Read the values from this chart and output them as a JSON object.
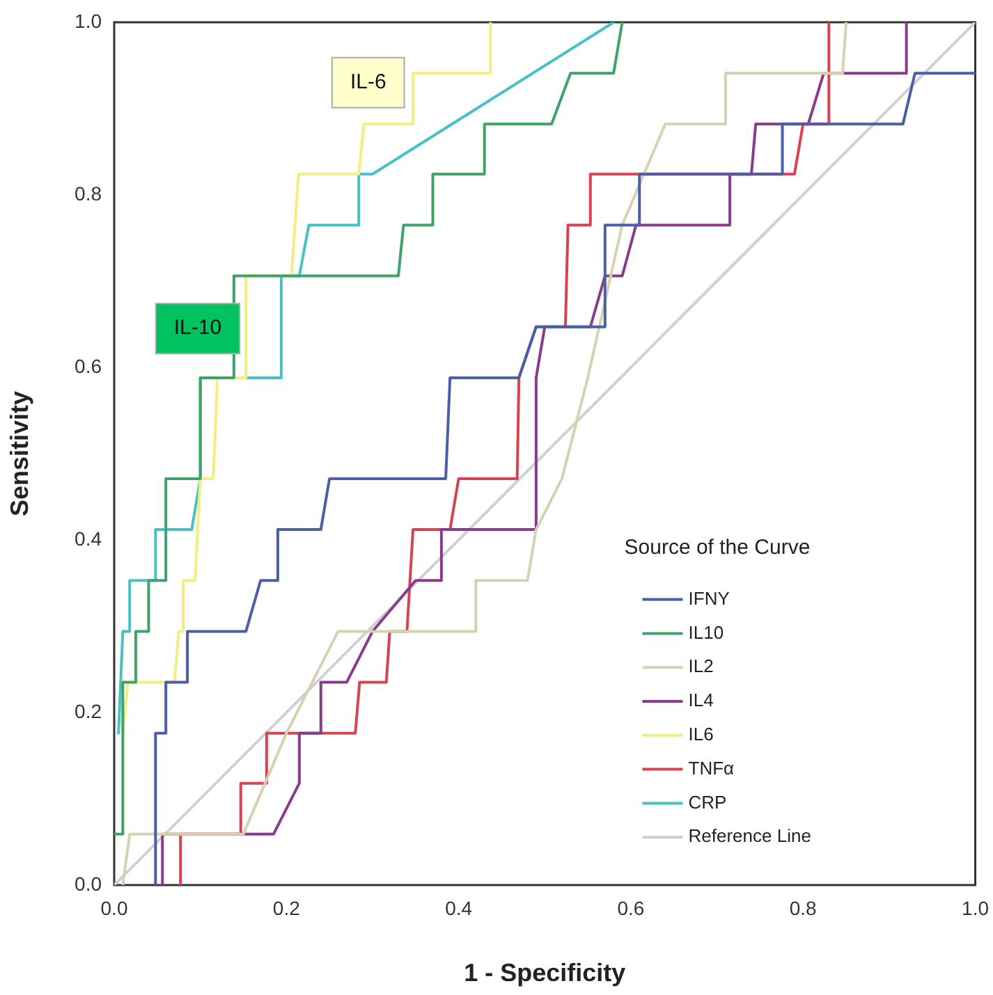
{
  "chart_data": {
    "type": "line",
    "xlabel": "1 - Specificity",
    "ylabel": "Sensitivity",
    "legend_title": "Source of the Curve",
    "legend": "bottom right",
    "grid": false,
    "marker": "none",
    "line_style": "solid",
    "xlim": [
      0,
      1
    ],
    "ylim": [
      0,
      1
    ],
    "xticks": [
      {
        "value": 0,
        "label": "0.0"
      },
      {
        "value": 0.2,
        "label": "0.2"
      },
      {
        "value": 0.4,
        "label": "0.4"
      },
      {
        "value": 0.6,
        "label": "0.6"
      },
      {
        "value": 0.8,
        "label": "0.8"
      },
      {
        "value": 1,
        "label": "1.0"
      }
    ],
    "yticks": [
      {
        "value": 0,
        "label": "0.0"
      },
      {
        "value": 0.2,
        "label": "0.2"
      },
      {
        "value": 0.4,
        "label": "0.4"
      },
      {
        "value": 0.6,
        "label": "0.6"
      },
      {
        "value": 0.8,
        "label": "0.8"
      },
      {
        "value": 1,
        "label": "1.0"
      }
    ],
    "annotations": [
      "IL-6",
      "IL-10"
    ],
    "series": [
      {
        "name": "IFNY",
        "color": "#4b5fa6",
        "x": [
          0.048,
          0.048,
          0.06,
          0.06,
          0.085,
          0.085,
          0.153,
          0.17,
          0.19,
          0.19,
          0.24,
          0.25,
          0.385,
          0.39,
          0.47,
          0.49,
          0.57,
          0.57,
          0.61,
          0.61,
          0.776,
          0.776,
          0.916,
          0.93,
          1
        ],
        "values": [
          0,
          0.176,
          0.176,
          0.235,
          0.235,
          0.294,
          0.294,
          0.353,
          0.353,
          0.412,
          0.412,
          0.471,
          0.471,
          0.588,
          0.588,
          0.647,
          0.647,
          0.765,
          0.765,
          0.824,
          0.824,
          0.882,
          0.882,
          0.941,
          0.941
        ]
      },
      {
        "name": "IL10",
        "color": "#3da36a",
        "x": [
          0,
          0.01,
          0.01,
          0.025,
          0.025,
          0.04,
          0.04,
          0.06,
          0.06,
          0.1,
          0.1,
          0.139,
          0.139,
          0.33,
          0.336,
          0.37,
          0.37,
          0.43,
          0.43,
          0.508,
          0.53,
          0.58,
          0.59
        ],
        "values": [
          0.059,
          0.059,
          0.235,
          0.235,
          0.294,
          0.294,
          0.353,
          0.353,
          0.471,
          0.471,
          0.588,
          0.588,
          0.706,
          0.706,
          0.765,
          0.765,
          0.824,
          0.824,
          0.882,
          0.882,
          0.941,
          0.941,
          1
        ]
      },
      {
        "name": "IL2",
        "color": "#d6d2b0",
        "x": [
          0.01,
          0.018,
          0.15,
          0.2,
          0.26,
          0.42,
          0.42,
          0.48,
          0.49,
          0.52,
          0.55,
          0.59,
          0.64,
          0.71,
          0.71,
          0.846,
          0.85
        ],
        "values": [
          0,
          0.059,
          0.059,
          0.176,
          0.294,
          0.294,
          0.353,
          0.353,
          0.412,
          0.471,
          0.588,
          0.765,
          0.882,
          0.882,
          0.941,
          0.941,
          1
        ]
      },
      {
        "name": "IL4",
        "color": "#8a3c8c",
        "x": [
          0.056,
          0.056,
          0.185,
          0.215,
          0.215,
          0.24,
          0.24,
          0.27,
          0.3,
          0.35,
          0.38,
          0.38,
          0.49,
          0.49,
          0.5,
          0.553,
          0.57,
          0.59,
          0.606,
          0.715,
          0.715,
          0.74,
          0.745,
          0.806,
          0.824,
          0.92,
          0.92
        ],
        "values": [
          0,
          0.059,
          0.059,
          0.118,
          0.176,
          0.176,
          0.235,
          0.235,
          0.294,
          0.353,
          0.353,
          0.412,
          0.412,
          0.588,
          0.647,
          0.647,
          0.706,
          0.706,
          0.765,
          0.765,
          0.824,
          0.824,
          0.882,
          0.882,
          0.941,
          0.941,
          1
        ]
      },
      {
        "name": "IL6",
        "color": "#f2ee80",
        "x": [
          0.01,
          0.016,
          0.07,
          0.075,
          0.08,
          0.08,
          0.094,
          0.1,
          0.115,
          0.12,
          0.153,
          0.153,
          0.206,
          0.21,
          0.214,
          0.284,
          0.29,
          0.347,
          0.347,
          0.437,
          0.437
        ],
        "values": [
          0.176,
          0.235,
          0.235,
          0.294,
          0.294,
          0.353,
          0.353,
          0.471,
          0.471,
          0.588,
          0.588,
          0.706,
          0.706,
          0.765,
          0.824,
          0.824,
          0.882,
          0.882,
          0.941,
          0.941,
          1
        ]
      },
      {
        "name": "TNFα",
        "color": "#d8434f",
        "x": [
          0.077,
          0.077,
          0.147,
          0.147,
          0.177,
          0.177,
          0.28,
          0.285,
          0.316,
          0.32,
          0.34,
          0.347,
          0.39,
          0.4,
          0.468,
          0.47,
          0.49,
          0.524,
          0.527,
          0.553,
          0.553,
          0.79,
          0.8,
          0.83,
          0.83
        ],
        "values": [
          0,
          0.059,
          0.059,
          0.118,
          0.118,
          0.176,
          0.176,
          0.235,
          0.235,
          0.294,
          0.294,
          0.412,
          0.412,
          0.471,
          0.471,
          0.588,
          0.647,
          0.647,
          0.765,
          0.765,
          0.824,
          0.824,
          0.882,
          0.882,
          1
        ]
      },
      {
        "name": "CRP",
        "color": "#47c1c4",
        "x": [
          0.005,
          0.01,
          0.018,
          0.018,
          0.048,
          0.048,
          0.09,
          0.1,
          0.1,
          0.194,
          0.194,
          0.215,
          0.226,
          0.284,
          0.284,
          0.3,
          0.58
        ],
        "values": [
          0.176,
          0.294,
          0.294,
          0.353,
          0.353,
          0.412,
          0.412,
          0.471,
          0.588,
          0.588,
          0.706,
          0.706,
          0.765,
          0.765,
          0.824,
          0.824,
          1
        ]
      },
      {
        "name": "Reference Line",
        "color": "#d0d0d0",
        "x": [
          0,
          1
        ],
        "values": [
          0,
          1
        ]
      }
    ]
  }
}
